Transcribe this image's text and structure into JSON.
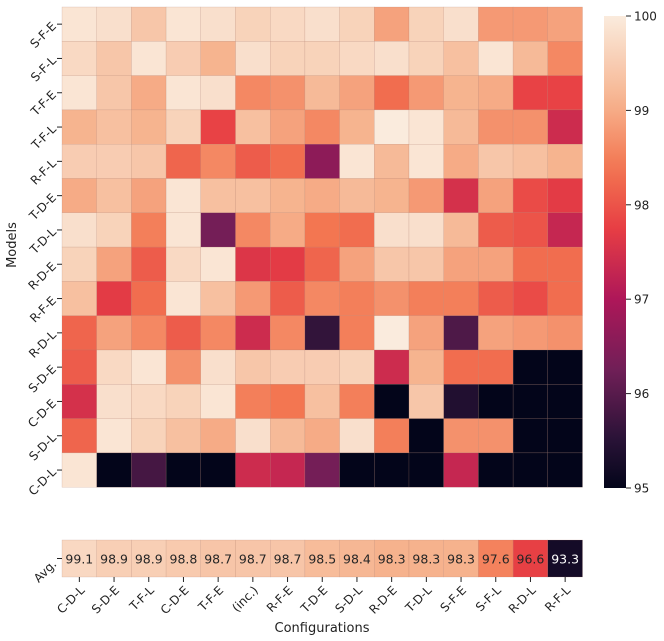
{
  "chart_data": [
    {
      "type": "heatmap",
      "title": "",
      "ylabel": "Models",
      "xlabel": "Configurations",
      "rows": [
        "S-F-E",
        "S-F-L",
        "T-F-E",
        "T-F-L",
        "R-F-L",
        "T-D-E",
        "T-D-L",
        "R-D-E",
        "R-F-E",
        "R-D-L",
        "S-D-E",
        "C-D-E",
        "S-D-L",
        "C-D-L"
      ],
      "columns": [
        "C-D-L",
        "S-D-E",
        "T-F-L",
        "C-D-E",
        "T-F-E",
        "(inc.)",
        "R-F-E",
        "T-D-E",
        "S-D-L",
        "R-D-E",
        "T-D-L",
        "S-F-E",
        "S-F-L",
        "R-D-L",
        "R-F-L"
      ],
      "colorbar": {
        "min": 95,
        "max": 100,
        "ticks": [
          95,
          96,
          97,
          98,
          99,
          100
        ]
      },
      "values": [
        [
          99.9,
          99.8,
          99.4,
          99.9,
          99.8,
          99.6,
          99.7,
          99.8,
          99.6,
          98.9,
          99.6,
          99.8,
          98.8,
          98.8,
          98.9
        ],
        [
          99.7,
          99.4,
          99.9,
          99.5,
          99.1,
          99.8,
          99.6,
          99.6,
          99.7,
          99.8,
          99.6,
          99.3,
          99.9,
          99.2,
          98.6
        ],
        [
          99.9,
          99.4,
          99.0,
          99.9,
          99.8,
          98.6,
          98.7,
          99.2,
          98.9,
          98.3,
          98.8,
          99.1,
          99.0,
          97.8,
          97.8
        ],
        [
          99.1,
          99.3,
          99.1,
          99.6,
          97.8,
          99.3,
          98.9,
          98.6,
          99.1,
          100.0,
          99.9,
          99.2,
          98.7,
          98.7,
          97.4
        ],
        [
          99.5,
          99.5,
          99.4,
          98.2,
          98.6,
          98.1,
          98.3,
          96.6,
          99.9,
          99.2,
          99.9,
          99.0,
          99.4,
          99.3,
          99.1
        ],
        [
          99.0,
          99.3,
          98.9,
          99.9,
          99.3,
          99.3,
          99.1,
          99.0,
          99.2,
          99.1,
          98.8,
          97.5,
          98.9,
          97.9,
          97.7
        ],
        [
          99.8,
          99.6,
          98.5,
          99.9,
          96.3,
          98.6,
          99.0,
          98.4,
          98.3,
          99.8,
          99.8,
          99.2,
          98.1,
          98.0,
          97.3
        ],
        [
          99.6,
          98.9,
          98.1,
          99.7,
          99.9,
          97.6,
          97.7,
          98.2,
          98.9,
          99.4,
          99.4,
          98.9,
          98.9,
          98.3,
          98.3
        ],
        [
          99.3,
          97.7,
          98.3,
          99.9,
          99.3,
          98.8,
          98.1,
          98.6,
          98.5,
          98.7,
          98.5,
          98.5,
          98.1,
          97.9,
          98.3
        ],
        [
          98.2,
          98.9,
          98.6,
          98.1,
          98.6,
          97.4,
          98.6,
          95.6,
          98.5,
          100.0,
          98.9,
          95.9,
          98.9,
          98.8,
          98.7
        ],
        [
          98.1,
          99.7,
          99.9,
          98.7,
          99.8,
          99.4,
          99.5,
          99.5,
          99.6,
          97.4,
          99.1,
          98.3,
          98.3,
          95.0,
          95.0
        ],
        [
          97.5,
          99.8,
          99.7,
          99.6,
          99.9,
          98.5,
          98.4,
          99.3,
          98.5,
          95.0,
          99.4,
          95.4,
          95.0,
          95.0,
          95.0
        ],
        [
          98.2,
          99.9,
          99.6,
          99.3,
          99.0,
          99.8,
          99.2,
          99.0,
          99.8,
          98.5,
          95.0,
          98.7,
          98.7,
          95.0,
          95.0
        ],
        [
          99.9,
          95.0,
          95.8,
          95.0,
          95.0,
          97.4,
          97.3,
          96.3,
          95.0,
          95.0,
          95.0,
          97.3,
          95.0,
          95.0,
          95.0
        ]
      ]
    },
    {
      "type": "heatmap",
      "ylabel": "Avg.",
      "xlabel": "Configurations",
      "columns": [
        "C-D-L",
        "S-D-E",
        "T-F-L",
        "C-D-E",
        "T-F-E",
        "(inc.)",
        "R-F-E",
        "T-D-E",
        "S-D-L",
        "R-D-E",
        "T-D-L",
        "S-F-E",
        "S-F-L",
        "R-D-L",
        "R-F-L"
      ],
      "values": [
        99.1,
        98.9,
        98.9,
        98.8,
        98.7,
        98.7,
        98.7,
        98.5,
        98.4,
        98.3,
        98.3,
        98.3,
        97.6,
        96.6,
        93.3
      ],
      "labels": [
        "99.1",
        "98.9",
        "98.9",
        "98.8",
        "98.7",
        "98.7",
        "98.7",
        "98.5",
        "98.4",
        "98.3",
        "98.3",
        "98.3",
        "97.6",
        "96.6",
        "93.3"
      ],
      "color_range": [
        93,
        99.5
      ]
    }
  ]
}
